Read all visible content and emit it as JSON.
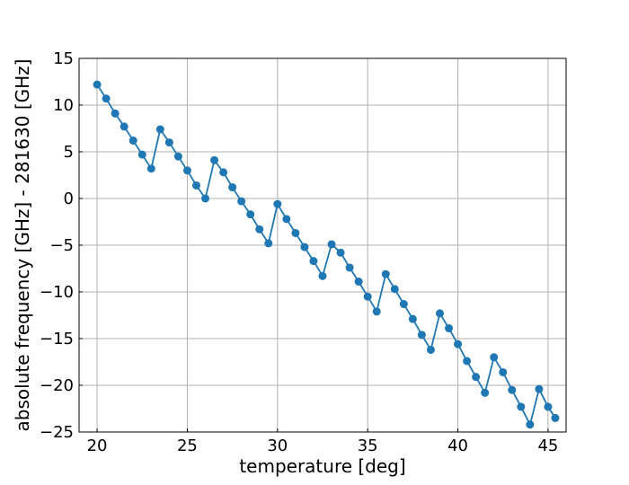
{
  "chart_data": {
    "type": "line",
    "title": "",
    "xlabel": "temperature [deg]",
    "ylabel": "absolute frequency [GHz] - 281630 [GHz]",
    "xlim": [
      19,
      46
    ],
    "ylim": [
      -25,
      15
    ],
    "xticks": [
      20,
      25,
      30,
      35,
      40,
      45
    ],
    "yticks": [
      -25,
      -20,
      -15,
      -10,
      -5,
      0,
      5,
      10,
      15
    ],
    "grid": true,
    "marker": "circle",
    "color": "#1f77b4",
    "series": [
      {
        "x": [
          20,
          20.5,
          21,
          21.5,
          22,
          22.5,
          23,
          23.5,
          24,
          24.5,
          25,
          25.5,
          26,
          26.5,
          27,
          27.5,
          28,
          28.5,
          29,
          29.5,
          30,
          30.5,
          31,
          31.5,
          32,
          32.5,
          33,
          33.5,
          34,
          34.5,
          35,
          35.5,
          36,
          36.5,
          37,
          37.5,
          38,
          38.5,
          39,
          39.5,
          40,
          40.5,
          41,
          41.5,
          42,
          42.5,
          43,
          43.5,
          44,
          44.5,
          45,
          45.4
        ],
        "y": [
          12.2,
          10.7,
          9.1,
          7.7,
          6.2,
          4.7,
          3.2,
          7.4,
          6.0,
          4.5,
          3.0,
          1.4,
          0.0,
          4.1,
          2.8,
          1.2,
          -0.3,
          -1.7,
          -3.3,
          -4.8,
          -0.6,
          -2.2,
          -3.7,
          -5.2,
          -6.7,
          -8.3,
          -4.9,
          -5.8,
          -7.4,
          -8.9,
          -10.5,
          -12.1,
          -8.1,
          -9.7,
          -11.3,
          -12.9,
          -14.6,
          -16.2,
          -12.3,
          -13.9,
          -15.6,
          -17.4,
          -19.1,
          -20.8,
          -17.0,
          -18.6,
          -20.5,
          -22.3,
          -24.2,
          -20.4,
          -22.3,
          -23.5
        ]
      }
    ]
  }
}
